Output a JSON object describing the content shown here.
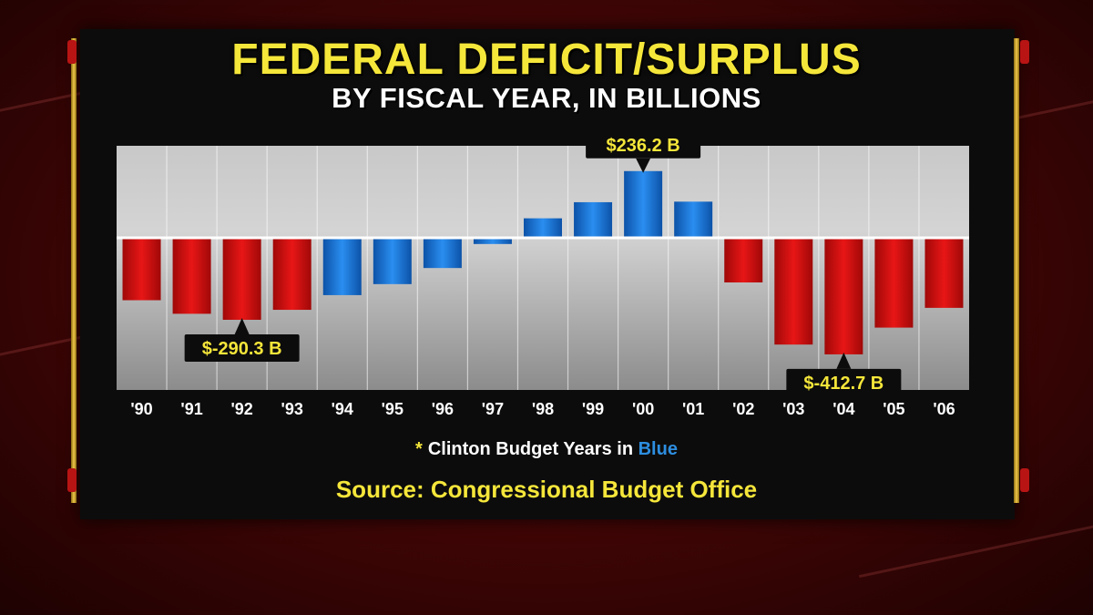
{
  "header": {
    "title": "FEDERAL DEFICIT/SURPLUS",
    "subtitle": "BY FISCAL YEAR, IN BILLIONS"
  },
  "footer": {
    "note_star": "*",
    "note_text": "Clinton Budget Years in",
    "note_highlight": "Blue",
    "source": "Source: Congressional Budget Office"
  },
  "colors": {
    "deficit_red": "#d41010",
    "clinton_blue": "#1a78d6",
    "title_yellow": "#f5e63a"
  },
  "chart_data": {
    "type": "bar",
    "title": "FEDERAL DEFICIT/SURPLUS",
    "subtitle": "BY FISCAL YEAR, IN BILLIONS",
    "categories": [
      "'90",
      "'91",
      "'92",
      "'93",
      "'94",
      "'95",
      "'96",
      "'97",
      "'98",
      "'99",
      "'00",
      "'01",
      "'02",
      "'03",
      "'04",
      "'05",
      "'06"
    ],
    "values": [
      -221,
      -269,
      -290.3,
      -255,
      -203,
      -164,
      -107,
      -22,
      69,
      126,
      236.2,
      128,
      -158,
      -378,
      -412.7,
      -318,
      -248
    ],
    "clinton_years": [
      "'94",
      "'95",
      "'96",
      "'97",
      "'98",
      "'99",
      "'00",
      "'01"
    ],
    "ylim": [
      -520,
      310
    ],
    "grid": true,
    "annotations": [
      {
        "category": "'92",
        "label": "$-290.3 B"
      },
      {
        "category": "'00",
        "label": "$236.2 B"
      },
      {
        "category": "'04",
        "label": "$-412.7 B"
      }
    ]
  }
}
